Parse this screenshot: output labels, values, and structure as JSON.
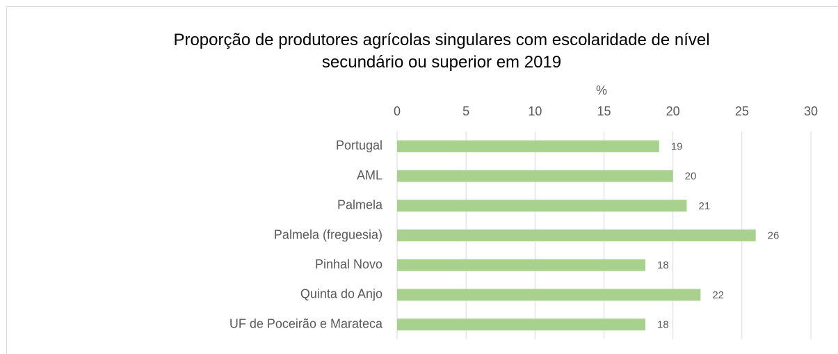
{
  "chart_data": {
    "type": "bar",
    "orientation": "horizontal",
    "title": "Proporção de produtores agrícolas singulares com escolaridade de nível secundário ou superior em 2019",
    "x_label": "%",
    "categories": [
      "Portugal",
      "AML",
      "Palmela",
      "Palmela (freguesia)",
      "Pinhal Novo",
      "Quinta do Anjo",
      "UF de Poceirão e Marateca"
    ],
    "values": [
      19,
      20,
      21,
      26,
      18,
      22,
      18
    ],
    "color": "#a9d18e",
    "xlim": [
      0,
      30
    ],
    "xticks": [
      0,
      5,
      10,
      15,
      20,
      25,
      30
    ],
    "grid": true
  }
}
